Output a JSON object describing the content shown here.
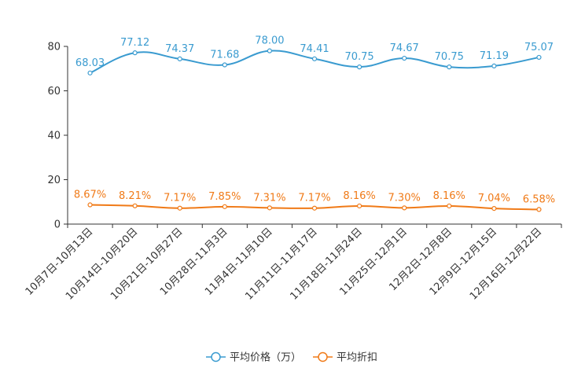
{
  "chart_data": {
    "type": "line",
    "categories": [
      "10月7日-10月13日",
      "10月14日-10月20日",
      "10月21日-10月27日",
      "10月28日-11月3日",
      "11月4日-11月10日",
      "11月11日-11月17日",
      "11月18日-11月24日",
      "11月25日-12月1日",
      "12月2日-12月8日",
      "12月9日-12月15日",
      "12月16日-12月22日"
    ],
    "series": [
      {
        "name": "平均价格（万）",
        "color": "#3a9bd0",
        "values": [
          68.03,
          77.12,
          74.37,
          71.68,
          78.0,
          74.41,
          70.75,
          74.67,
          70.75,
          71.19,
          75.07
        ],
        "labels": [
          "68.03",
          "77.12",
          "74.37",
          "71.68",
          "78.00",
          "74.41",
          "70.75",
          "74.67",
          "70.75",
          "71.19",
          "75.07"
        ]
      },
      {
        "name": "平均折扣",
        "color": "#f07a17",
        "values": [
          8.67,
          8.21,
          7.17,
          7.85,
          7.31,
          7.17,
          8.16,
          7.3,
          8.16,
          7.04,
          6.58
        ],
        "labels": [
          "8.67%",
          "8.21%",
          "7.17%",
          "7.85%",
          "7.31%",
          "7.17%",
          "8.16%",
          "7.30%",
          "8.16%",
          "7.04%",
          "6.58%"
        ]
      }
    ],
    "ylim": [
      0,
      80
    ],
    "yticks": [
      "0",
      "20",
      "40",
      "60",
      "80"
    ],
    "title": "",
    "xlabel": "",
    "ylabel": "",
    "legend_position": "bottom-center",
    "grid": false
  }
}
